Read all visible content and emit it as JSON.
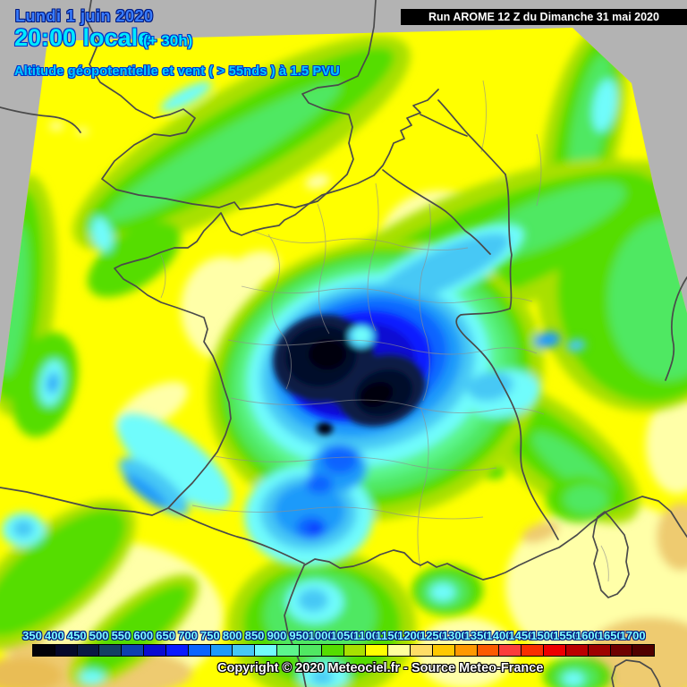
{
  "header": {
    "date_line": "Lundi 1 juin 2020",
    "time_line": "20:00 locale",
    "offset": "(+ 30h)",
    "subtitle": "Altitude géopotentielle et vent ( > 55nds ) à 1.5 PVU"
  },
  "run_info": {
    "label": "Run AROME 12 Z du Dimanche 31 mai 2020",
    "background": "#000000",
    "foreground": "#ffffff"
  },
  "copyright": "Copyright © 2020 Meteociel.fr - Source Meteo-France",
  "colorbar": {
    "values": [
      "350",
      "400",
      "450",
      "500",
      "550",
      "600",
      "650",
      "700",
      "750",
      "800",
      "850",
      "900",
      "950",
      "1000",
      "1050",
      "1100",
      "1150",
      "1200",
      "1250",
      "1300",
      "1350",
      "1400",
      "1450",
      "1500",
      "1550",
      "1600",
      "1650",
      "1700"
    ],
    "colors": [
      "#020208",
      "#05082a",
      "#0a1a44",
      "#133f63",
      "#0d3faf",
      "#0a0ad2",
      "#0a1aff",
      "#0a64ff",
      "#1e9afa",
      "#46c8f5",
      "#70fcfc",
      "#5cf58c",
      "#50e862",
      "#55dd00",
      "#a8e000",
      "#ffff00",
      "#ffff9e",
      "#fedd66",
      "#fec800",
      "#fe9800",
      "#fc5a00",
      "#fc3c3c",
      "#fa2e00",
      "#ee0000",
      "#bb0000",
      "#9e0000",
      "#6e0000",
      "#500000"
    ],
    "label_color": "#7dfdff"
  },
  "map": {
    "outside_domain_color": "#b3b3b3",
    "base_field_color": "#ffff00",
    "coast_border_color": "#4a4a4a",
    "department_border_color": "#8f8f8f",
    "low_center_region": "central France",
    "feature": "upper-level low (minimum geopotential ~350-400 dam at 1.5 PVU)"
  }
}
